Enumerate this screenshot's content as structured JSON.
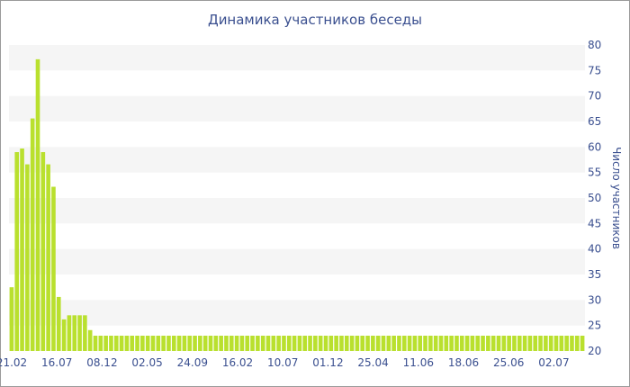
{
  "chart_data": {
    "type": "bar",
    "title": "Динамика участников беседы",
    "ylabel": "Число участников",
    "xlabel": "",
    "ylim": [
      20,
      80
    ],
    "y_ticks": [
      20,
      25,
      30,
      35,
      40,
      45,
      50,
      55,
      60,
      65,
      70,
      75,
      80
    ],
    "x_tick_labels": [
      "21.02",
      "16.07",
      "08.12",
      "02.05",
      "24.09",
      "16.02",
      "10.07",
      "01.12",
      "25.04",
      "11.06",
      "18.06",
      "25.06",
      "02.07"
    ],
    "values": [
      32.5,
      59,
      59.7,
      56.6,
      65.6,
      77.2,
      59,
      56.6,
      52.2,
      30.6,
      26.2,
      27,
      27,
      27,
      27,
      24.1,
      23,
      23,
      23,
      23,
      23,
      23,
      23,
      23,
      23,
      23,
      23,
      23,
      23,
      23,
      23,
      23,
      23,
      23,
      23,
      23,
      23,
      23,
      23,
      23,
      23,
      23,
      23,
      23,
      23,
      23,
      23,
      23,
      23,
      23,
      23,
      23,
      23,
      23,
      23,
      23,
      23,
      23,
      23,
      23,
      23,
      23,
      23,
      23,
      23,
      23,
      23,
      23,
      23,
      23,
      23,
      23,
      23,
      23,
      23,
      23,
      23,
      23,
      23,
      23,
      23,
      23,
      23,
      23,
      23,
      23,
      23,
      23,
      23,
      23,
      23,
      23,
      23,
      23,
      23,
      23,
      23,
      23,
      23,
      23,
      23,
      23,
      23,
      23,
      23,
      23,
      23,
      23,
      23,
      23
    ],
    "grid": true,
    "bar_color": "#b9e02e",
    "band_color": "#f5f5f5",
    "text_color": "#3a4f8f"
  }
}
